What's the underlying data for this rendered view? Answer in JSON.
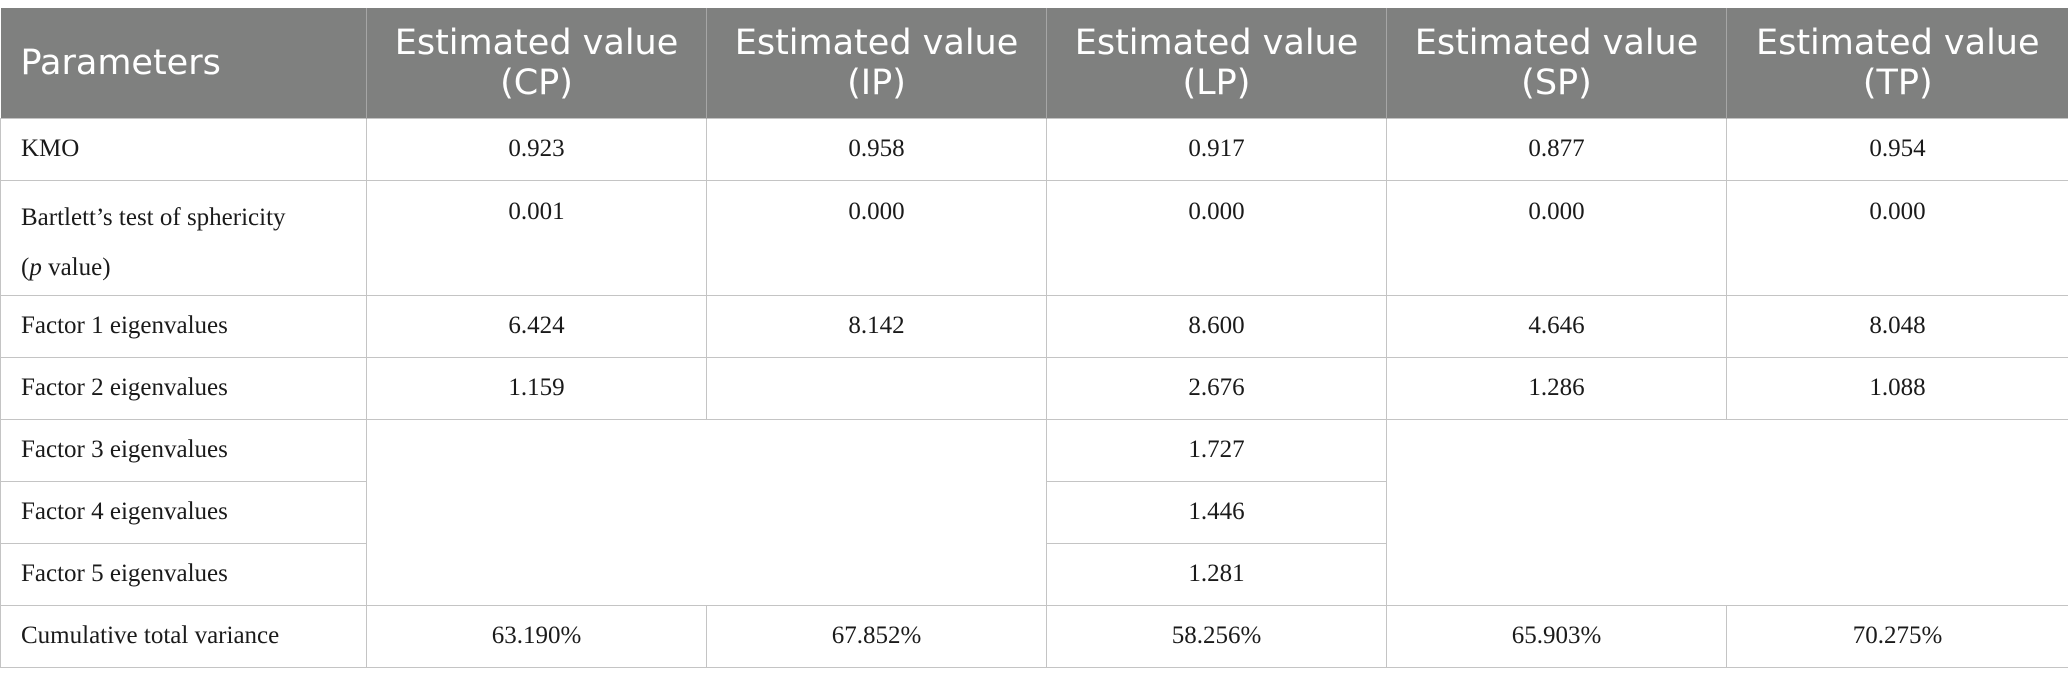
{
  "columns": [
    {
      "line1": "Parameters",
      "line2": ""
    },
    {
      "line1": "Estimated value",
      "line2": "(CP)"
    },
    {
      "line1": "Estimated value",
      "line2": "(IP)"
    },
    {
      "line1": "Estimated value",
      "line2": "(LP)"
    },
    {
      "line1": "Estimated value",
      "line2": "(SP)"
    },
    {
      "line1": "Estimated value",
      "line2": "(TP)"
    }
  ],
  "rows": {
    "kmo": {
      "label": "KMO",
      "cp": "0.923",
      "ip": "0.958",
      "lp": "0.917",
      "sp": "0.877",
      "tp": "0.954"
    },
    "bartlett": {
      "label_line1": "Bartlett’s test of sphericity",
      "label_p": "p",
      "label_rest": " value)",
      "label_open": "(",
      "cp": "0.001",
      "ip": "0.000",
      "lp": "0.000",
      "sp": "0.000",
      "tp": "0.000"
    },
    "factor1": {
      "label": "Factor 1 eigenvalues",
      "cp": "6.424",
      "ip": "8.142",
      "lp": "8.600",
      "sp": "4.646",
      "tp": "8.048"
    },
    "factor2": {
      "label": "Factor 2 eigenvalues",
      "cp": "1.159",
      "ip": "",
      "lp": "2.676",
      "sp": "1.286",
      "tp": "1.088"
    },
    "factor3": {
      "label": "Factor 3 eigenvalues",
      "lp": "1.727"
    },
    "factor4": {
      "label": "Factor 4 eigenvalues",
      "lp": "1.446"
    },
    "factor5": {
      "label": "Factor 5 eigenvalues",
      "lp": "1.281"
    },
    "variance": {
      "label": "Cumulative total variance",
      "cp": "63.190%",
      "ip": "67.852%",
      "lp": "58.256%",
      "sp": "65.903%",
      "tp": "70.275%"
    }
  }
}
